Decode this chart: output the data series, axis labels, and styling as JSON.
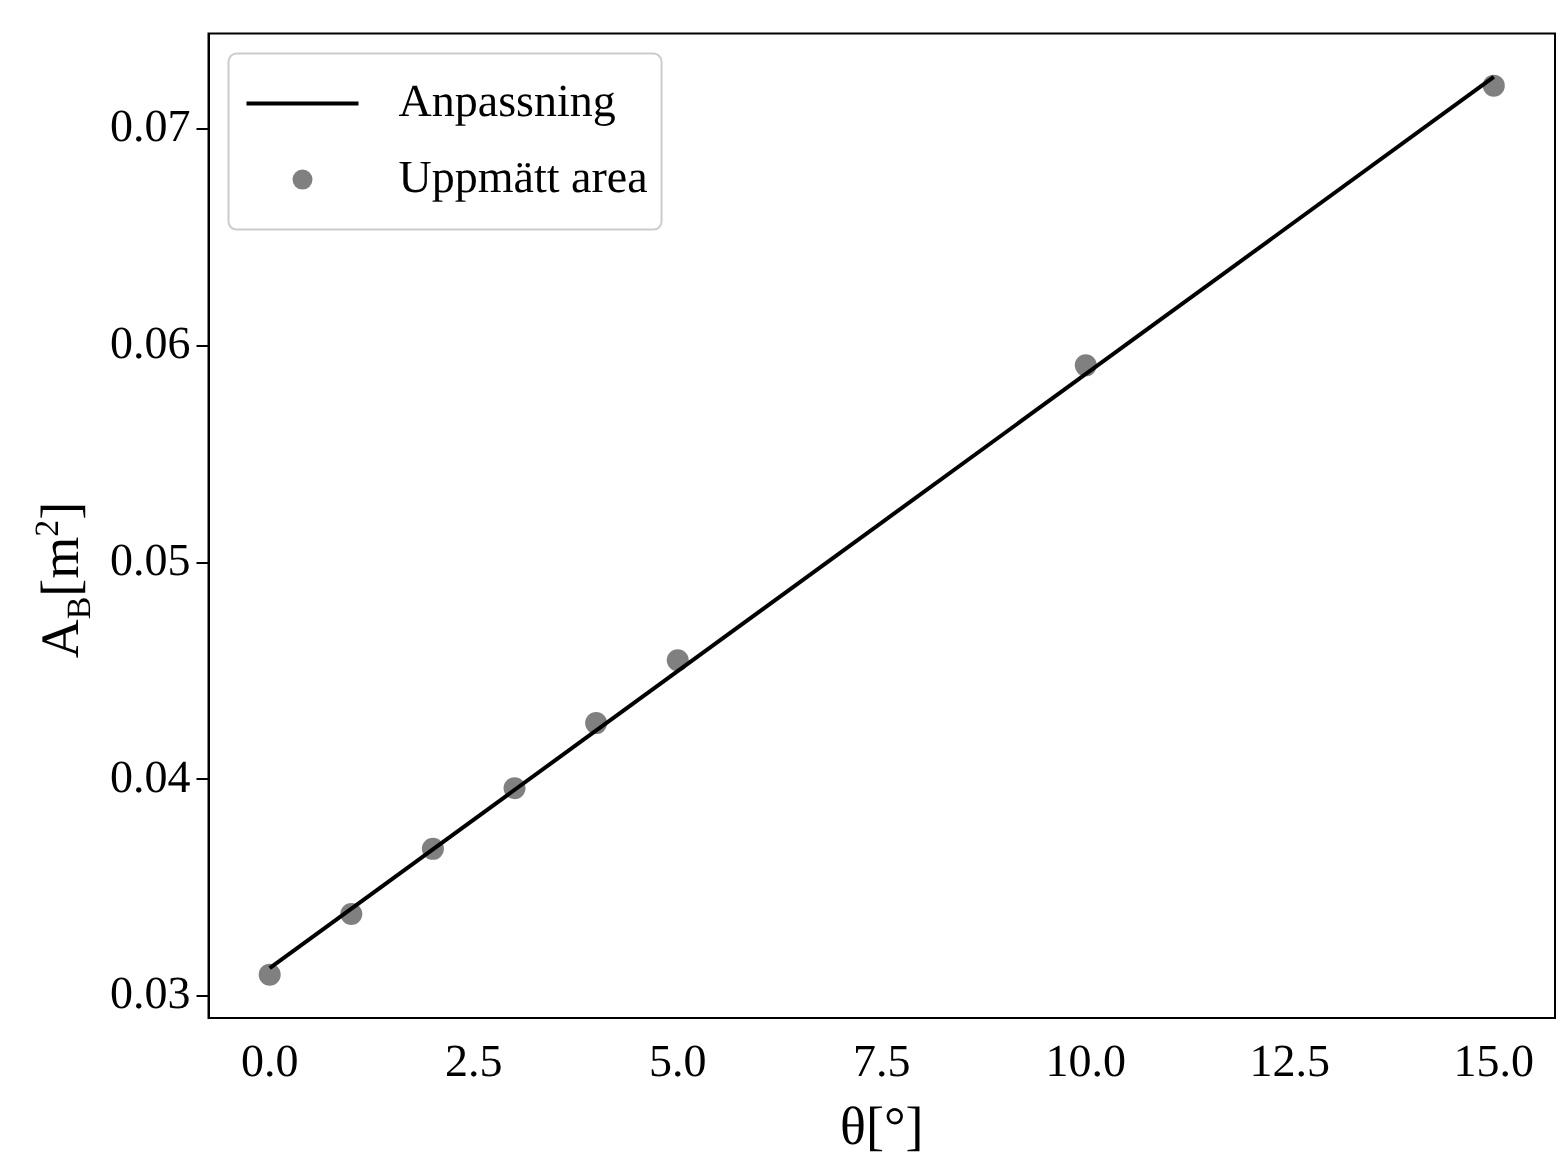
{
  "chart_data": {
    "type": "scatter",
    "xlabel": "θ[°]",
    "ylabel": "A$_{B}$[m$^{2}$]",
    "xlim": [
      -0.75,
      15.75
    ],
    "ylim": [
      0.029,
      0.0744
    ],
    "xticks": [
      {
        "value": 0,
        "label": "0.0"
      },
      {
        "value": 2.5,
        "label": "2.5"
      },
      {
        "value": 5,
        "label": "5.0"
      },
      {
        "value": 7.5,
        "label": "7.5"
      },
      {
        "value": 10,
        "label": "10.0"
      },
      {
        "value": 12.5,
        "label": "12.5"
      },
      {
        "value": 15,
        "label": "15.0"
      }
    ],
    "yticks": [
      0.03,
      0.04,
      0.05,
      0.06,
      0.07
    ],
    "series": [
      {
        "name": "Anpassning",
        "type": "line",
        "marker": "none",
        "color": "#000000",
        "x": [
          0,
          15
        ],
        "values": [
          0.0313,
          0.0724
        ]
      },
      {
        "name": "Uppmätt area",
        "marker": "circle",
        "color": "#808080",
        "x": [
          0,
          1,
          2,
          3,
          4,
          5,
          10,
          15
        ],
        "values": [
          0.031,
          0.0338,
          0.0368,
          0.0396,
          0.0426,
          0.0455,
          0.0591,
          0.072
        ]
      }
    ],
    "grid": false,
    "legend": "top left"
  }
}
